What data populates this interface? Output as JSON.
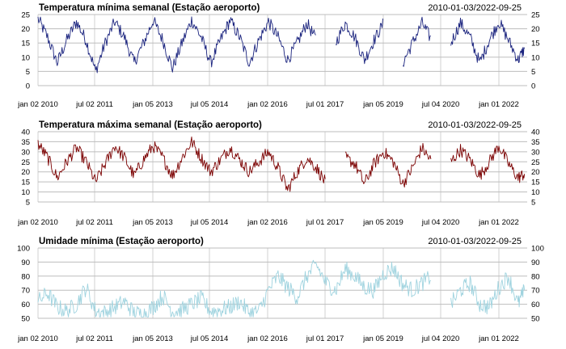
{
  "chart_data": [
    {
      "type": "line",
      "title": "Temperatura mínima semanal (Estação aeroporto)",
      "date_range": "2010-01-03/2022-09-25",
      "color": "#1a237e",
      "ylim": [
        0,
        25
      ],
      "yticks": [
        "0",
        "5",
        "10",
        "15",
        "20",
        "25"
      ],
      "grid": true,
      "x": [
        "2010-01",
        "2010-04",
        "2010-07",
        "2010-10",
        "2011-01",
        "2011-04",
        "2011-07",
        "2011-10",
        "2012-01",
        "2012-04",
        "2012-07",
        "2012-10",
        "2013-01",
        "2013-04",
        "2013-07",
        "2013-10",
        "2014-01",
        "2014-04",
        "2014-07",
        "2014-10",
        "2015-01",
        "2015-04",
        "2015-07",
        "2015-10",
        "2016-01",
        "2016-04",
        "2016-07",
        "2016-10",
        "2017-01",
        "2017-04",
        "2017-07",
        "2017-10",
        "2018-01",
        "2018-04",
        "2018-07",
        "2018-10",
        "2019-01",
        "2019-04",
        "2019-07",
        "2019-10",
        "2020-01",
        "2020-04",
        "2020-07",
        "2020-10",
        "2021-01",
        "2021-04",
        "2021-07",
        "2021-10",
        "2022-01",
        "2022-04",
        "2022-07",
        "2022-09"
      ],
      "values": [
        23.5,
        17,
        8,
        16,
        22.5,
        16,
        5,
        15,
        22.5,
        17,
        8,
        15,
        23,
        16,
        6,
        15,
        23,
        17,
        8,
        16,
        23,
        17,
        8,
        16,
        22.5,
        17,
        9,
        15,
        22,
        16,
        null,
        15,
        22,
        17,
        9,
        16,
        22,
        null,
        8,
        15,
        22,
        16,
        null,
        15,
        22,
        17,
        8,
        16,
        22.5,
        16,
        9,
        13
      ]
    },
    {
      "type": "line",
      "title": "Temperatura máxima semanal (Estação aeroporto)",
      "date_range": "2010-01-03/2022-09-25",
      "color": "#7b0000",
      "ylim": [
        5,
        40
      ],
      "yticks": [
        "5",
        "10",
        "15",
        "20",
        "25",
        "30",
        "35",
        "40"
      ],
      "grid": true,
      "x": [
        "2010-01",
        "2010-04",
        "2010-07",
        "2010-10",
        "2011-01",
        "2011-04",
        "2011-07",
        "2011-10",
        "2012-01",
        "2012-04",
        "2012-07",
        "2012-10",
        "2013-01",
        "2013-04",
        "2013-07",
        "2013-10",
        "2014-01",
        "2014-04",
        "2014-07",
        "2014-10",
        "2015-01",
        "2015-04",
        "2015-07",
        "2015-10",
        "2016-01",
        "2016-04",
        "2016-07",
        "2016-10",
        "2017-01",
        "2017-04",
        "2017-07",
        "2017-10",
        "2018-01",
        "2018-04",
        "2018-07",
        "2018-10",
        "2019-01",
        "2019-04",
        "2019-07",
        "2019-10",
        "2020-01",
        "2020-04",
        "2020-07",
        "2020-10",
        "2021-01",
        "2021-04",
        "2021-07",
        "2021-10",
        "2022-01",
        "2022-04",
        "2022-07",
        "2022-09"
      ],
      "values": [
        34,
        27,
        17,
        25,
        32,
        25,
        15,
        24,
        33,
        27,
        18,
        26,
        33,
        27,
        18,
        27,
        35,
        27,
        20,
        26,
        32,
        26,
        20,
        25,
        30,
        22,
        11,
        20,
        27,
        22,
        14,
        null,
        27,
        24,
        14,
        24,
        30,
        25,
        14,
        22,
        32,
        25,
        null,
        25,
        31,
        26,
        18,
        25,
        33,
        24,
        17,
        19
      ]
    },
    {
      "type": "line",
      "title": "Umidade mínima (Estação aeroporto)",
      "date_range": "2010-01-03/2022-09-25",
      "color": "#9fd3df",
      "ylim": [
        50,
        100
      ],
      "yticks": [
        "50",
        "60",
        "70",
        "80",
        "90",
        "100"
      ],
      "grid": true,
      "x": [
        "2010-01",
        "2010-04",
        "2010-07",
        "2010-10",
        "2011-01",
        "2011-04",
        "2011-07",
        "2011-10",
        "2012-01",
        "2012-04",
        "2012-07",
        "2012-10",
        "2013-01",
        "2013-04",
        "2013-07",
        "2013-10",
        "2014-01",
        "2014-04",
        "2014-07",
        "2014-10",
        "2015-01",
        "2015-04",
        "2015-07",
        "2015-10",
        "2016-01",
        "2016-04",
        "2016-07",
        "2016-10",
        "2017-01",
        "2017-04",
        "2017-07",
        "2017-10",
        "2018-01",
        "2018-04",
        "2018-07",
        "2018-10",
        "2019-01",
        "2019-04",
        "2019-07",
        "2019-10",
        "2020-01",
        "2020-04",
        "2020-07",
        "2020-10",
        "2021-01",
        "2021-04",
        "2021-07",
        "2021-10",
        "2022-01",
        "2022-04",
        "2022-07",
        "2022-09"
      ],
      "values": [
        62,
        68,
        58,
        55,
        60,
        72,
        55,
        54,
        58,
        62,
        54,
        53,
        58,
        66,
        55,
        56,
        60,
        64,
        55,
        56,
        58,
        62,
        54,
        55,
        70,
        80,
        72,
        65,
        80,
        88,
        75,
        70,
        85,
        80,
        72,
        70,
        82,
        86,
        74,
        70,
        75,
        80,
        null,
        60,
        70,
        75,
        60,
        58,
        72,
        80,
        60,
        70
      ]
    }
  ],
  "x_ticks": [
    "jan 02 2010",
    "jul 02 2011",
    "jan 05 2013",
    "jul 05 2014",
    "jan 02 2016",
    "jul 01 2017",
    "jan 05 2019",
    "jul 04 2020",
    "jan 01 2022"
  ]
}
